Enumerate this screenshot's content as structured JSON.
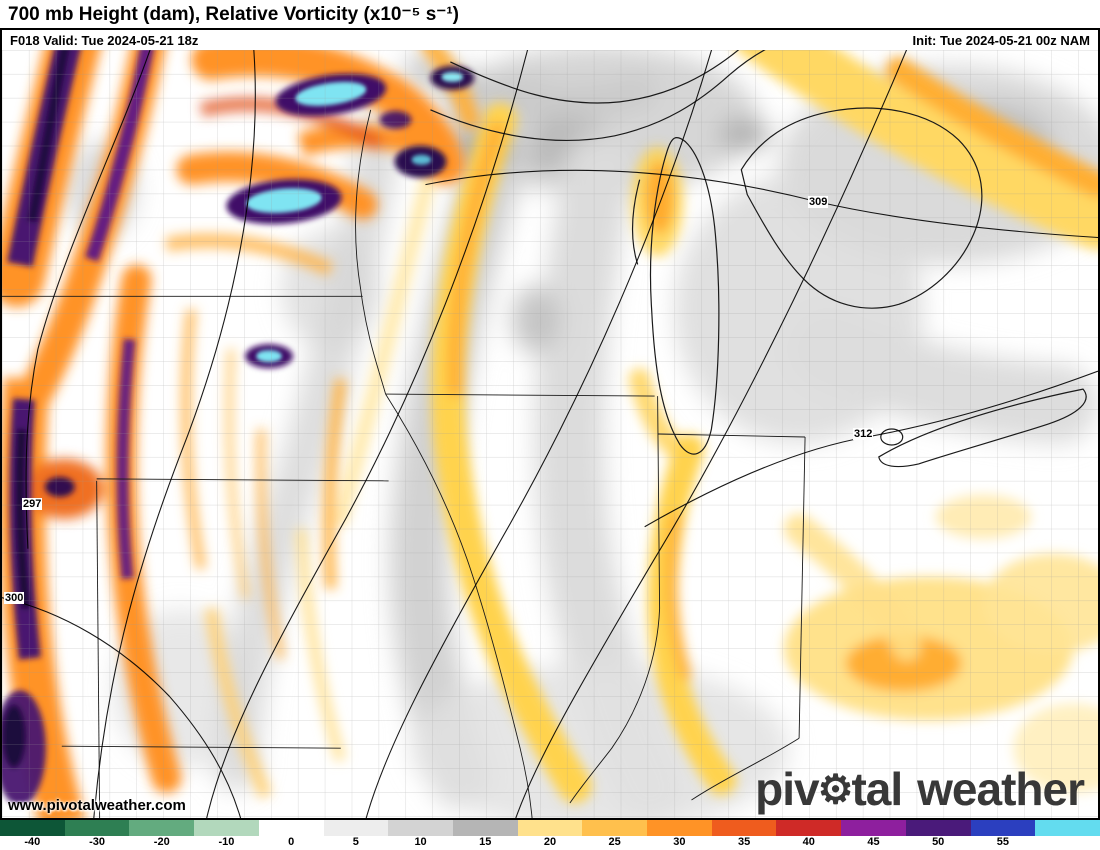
{
  "header": {
    "title": "700 mb Height (dam), Relative Vorticity (x10⁻⁵ s⁻¹)",
    "valid_label": "F018 Valid: Tue 2024-05-21 18z",
    "init_label": "Init: Tue 2024-05-21 00z NAM"
  },
  "map": {
    "contour_labels": [
      "297",
      "300",
      "309",
      "312"
    ],
    "watermark": "www.pivotalweather.com",
    "logo": {
      "part1": "piv",
      "part2": "tal",
      "word2": "weather",
      "gear_icon": "⚙"
    }
  },
  "colorbar": {
    "ticks": [
      "-40",
      "-30",
      "-20",
      "-10",
      "0",
      "5",
      "10",
      "15",
      "20",
      "25",
      "30",
      "35",
      "40",
      "45",
      "50",
      "55"
    ],
    "segments": [
      "#0d5637",
      "#2e7f53",
      "#63ab7f",
      "#b2d8bc",
      "#ffffff",
      "#ededed",
      "#d3d3d3",
      "#b5b5b5",
      "#ffe18c",
      "#ffc04d",
      "#ff9326",
      "#ef5c1e",
      "#cf2a27",
      "#8e1f9e",
      "#4a1a7a",
      "#2b3fbf",
      "#63dcef"
    ]
  }
}
